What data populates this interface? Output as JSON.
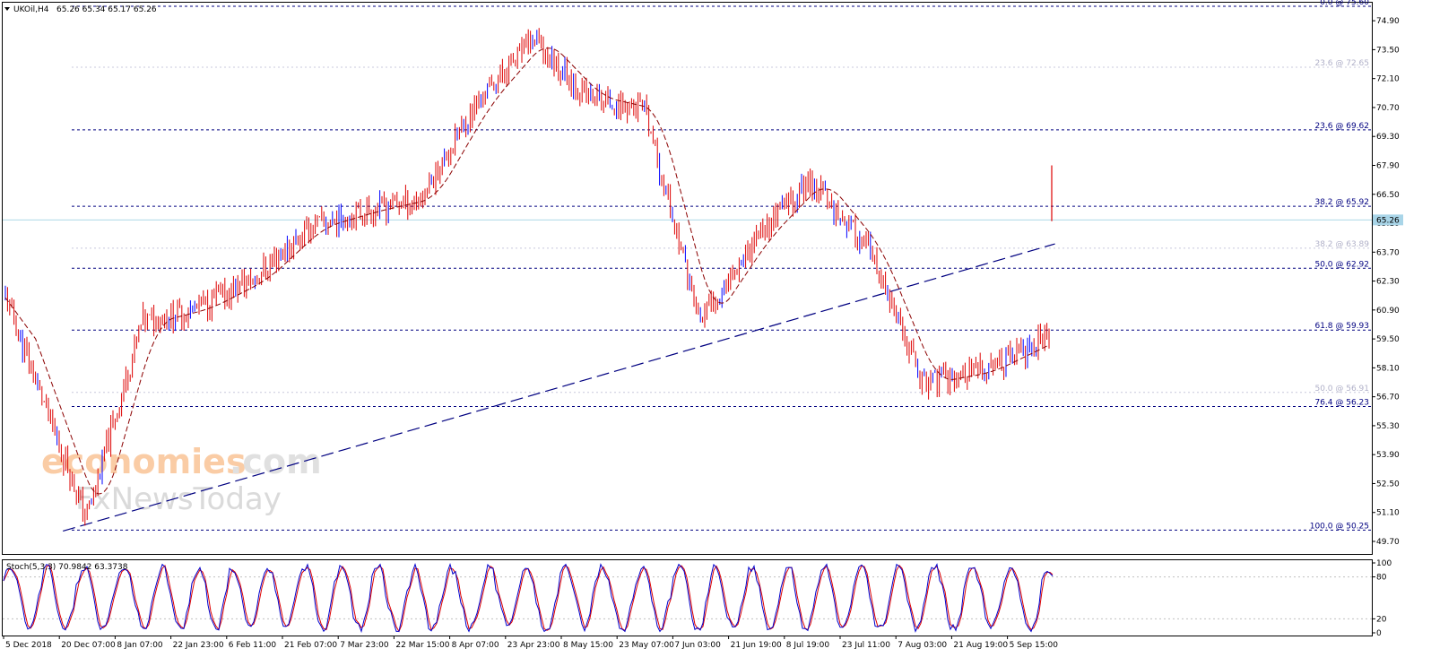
{
  "header": {
    "symbol_label": "UKOil,H4",
    "ohlc_text": "65.26 65.34 65.17 65.26"
  },
  "stoch": {
    "label": "Stoch(5,3,3) 70.9842 63.3738",
    "levels": [
      "100",
      "80",
      "20",
      "0"
    ]
  },
  "watermark": {
    "line1_a": "economies",
    "line1_b": ".com",
    "line2": "FxNewsToday"
  },
  "colors": {
    "candle": "#dd0000",
    "candle_alt": "#0000ff",
    "sma": "#8b0000",
    "fib_line": "#000080",
    "fib_faint": "#c8c8dc",
    "trendline": "#000080",
    "current_price_line": "#add8e6",
    "stoch_main": "#0000cc",
    "stoch_signal": "#dd0000",
    "price_tag_bg": "#a9d5e8"
  },
  "chart_data": {
    "type": "line",
    "title": "UKOil,H4",
    "ylim": [
      49.7,
      75.6
    ],
    "y_ticks": [
      "74.90",
      "73.50",
      "72.10",
      "70.70",
      "69.30",
      "67.90",
      "66.50",
      "65.10",
      "63.70",
      "62.30",
      "60.90",
      "59.50",
      "58.10",
      "56.70",
      "55.30",
      "53.90",
      "52.50",
      "51.10",
      "49.70"
    ],
    "current_price": "65.26",
    "x_ticks": [
      "5 Dec 2018",
      "20 Dec 07:00",
      "8 Jan 07:00",
      "22 Jan 23:00",
      "6 Feb 11:00",
      "21 Feb 07:00",
      "7 Mar 23:00",
      "22 Mar 15:00",
      "8 Apr 07:00",
      "23 Apr 23:00",
      "8 May 15:00",
      "23 May 07:00",
      "7 Jun 03:00",
      "21 Jun 19:00",
      "8 Jul 19:00",
      "23 Jul 11:00",
      "7 Aug 03:00",
      "21 Aug 19:00",
      "5 Sep 15:00"
    ],
    "fib_levels": [
      {
        "label": "0.0 @ 75.60",
        "value": 75.6,
        "style": "dashed"
      },
      {
        "label": "23.6 @ 72.65",
        "value": 72.65,
        "style": "faint"
      },
      {
        "label": "23.6 @ 69.62",
        "value": 69.62,
        "style": "dashed"
      },
      {
        "label": "38.2 @ 65.92",
        "value": 65.92,
        "style": "dashed"
      },
      {
        "label": "38.2 @ 63.89",
        "value": 63.89,
        "style": "faint"
      },
      {
        "label": "50.0 @ 62.92",
        "value": 62.92,
        "style": "dashed"
      },
      {
        "label": "61.8 @ 59.93",
        "value": 59.93,
        "style": "dashed"
      },
      {
        "label": "50.0 @ 56.91",
        "value": 56.91,
        "style": "faint"
      },
      {
        "label": "76.4 @ 56.23",
        "value": 56.23,
        "style": "dashed"
      },
      {
        "label": "100.0 @ 50.25",
        "value": 50.25,
        "style": "dashed"
      }
    ],
    "trendline": {
      "from": [
        "20 Dec 07:00",
        50.2
      ],
      "to": [
        "5 Sep 15:00",
        64.1
      ]
    },
    "series": [
      {
        "x": [
          "5 Dec 2018",
          "20 Dec 07:00",
          "8 Jan 07:00",
          "22 Jan 23:00",
          "6 Feb 11:00",
          "21 Feb 07:00",
          "7 Mar 23:00",
          "22 Mar 15:00",
          "8 Apr 07:00",
          "23 Apr 23:00",
          "8 May 15:00",
          "23 May 07:00",
          "7 Jun 03:00",
          "21 Jun 19:00",
          "8 Jul 19:00",
          "23 Jul 11:00",
          "7 Aug 03:00",
          "21 Aug 19:00",
          "5 Sep 15:00"
        ],
        "values": [
          61.5,
          50.8,
          60.3,
          61.0,
          62.4,
          64.9,
          65.7,
          66.3,
          70.9,
          74.0,
          71.2,
          70.6,
          60.4,
          64.4,
          67.2,
          63.9,
          57.4,
          57.9,
          59.6
        ]
      }
    ]
  }
}
